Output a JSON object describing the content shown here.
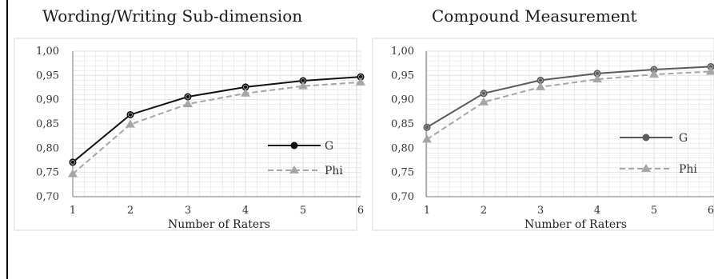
{
  "colors": {
    "g_left": "#111111",
    "g_right": "#5a5a5a",
    "phi": "#a6a6a6",
    "grid": "#e2e2e2",
    "frame": "#d9d9d9",
    "axis": "#777777"
  },
  "chart_data": [
    {
      "type": "line",
      "title": "Wording/Writing Sub-dimension",
      "xlabel": "Number of Raters",
      "ylabel": "",
      "x": [
        1,
        2,
        3,
        4,
        5,
        6
      ],
      "xticks": [
        "1",
        "2",
        "3",
        "4",
        "5",
        "6"
      ],
      "ylim": [
        0.7,
        1.0
      ],
      "yticks": [
        "0,70",
        "0,75",
        "0,80",
        "0,85",
        "0,90",
        "0,95",
        "1,00"
      ],
      "grid": true,
      "legend": "right",
      "series": [
        {
          "name": "G",
          "values": [
            0.771,
            0.869,
            0.906,
            0.926,
            0.939,
            0.947
          ],
          "marker": "circle",
          "dashed": false
        },
        {
          "name": "Phi",
          "values": [
            0.747,
            0.849,
            0.891,
            0.913,
            0.928,
            0.936
          ],
          "marker": "triangle",
          "dashed": true
        }
      ]
    },
    {
      "type": "line",
      "title": "Compound Measurement",
      "xlabel": "Number of Raters",
      "ylabel": "",
      "x": [
        1,
        2,
        3,
        4,
        5,
        6
      ],
      "xticks": [
        "1",
        "2",
        "3",
        "4",
        "5",
        "6"
      ],
      "ylim": [
        0.7,
        1.0
      ],
      "yticks": [
        "0,70",
        "0,75",
        "0,80",
        "0,85",
        "0,90",
        "0,95",
        "1,00"
      ],
      "grid": true,
      "legend": "right",
      "series": [
        {
          "name": "G",
          "values": [
            0.843,
            0.913,
            0.94,
            0.954,
            0.962,
            0.968
          ],
          "marker": "circle",
          "dashed": false
        },
        {
          "name": "Phi",
          "values": [
            0.818,
            0.895,
            0.926,
            0.942,
            0.952,
            0.958
          ],
          "marker": "triangle",
          "dashed": true
        }
      ]
    }
  ]
}
